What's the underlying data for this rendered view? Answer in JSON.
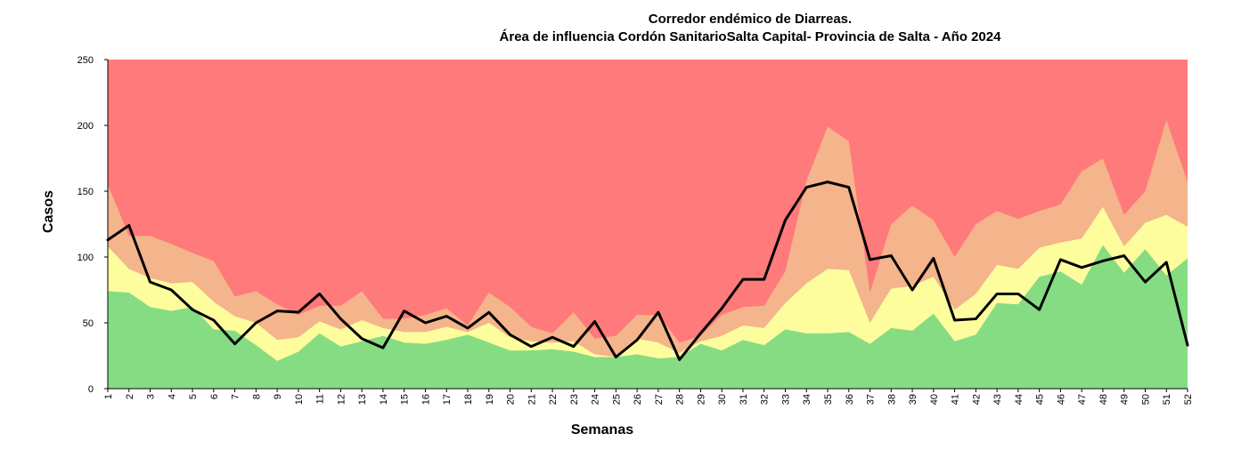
{
  "chart_data": {
    "type": "area",
    "title": "Corredor endémico de Diarreas.",
    "subtitle": "Área de influencia Cordón SanitarioSalta Capital- Provincia de Salta - Año 2024",
    "xlabel": "Semanas",
    "ylabel": "Casos",
    "ylim": [
      0,
      250
    ],
    "yticks": [
      0,
      50,
      100,
      150,
      200,
      250
    ],
    "grid": false,
    "legend": "none",
    "categories": [
      "1",
      "2",
      "3",
      "4",
      "5",
      "6",
      "7",
      "8",
      "9",
      "10",
      "11",
      "12",
      "13",
      "14",
      "15",
      "16",
      "17",
      "18",
      "19",
      "20",
      "21",
      "22",
      "23",
      "24",
      "25",
      "26",
      "27",
      "28",
      "29",
      "30",
      "31",
      "32",
      "33",
      "34",
      "35",
      "36",
      "37",
      "38",
      "39",
      "40",
      "41",
      "42",
      "43",
      "44",
      "45",
      "46",
      "47",
      "48",
      "49",
      "50",
      "51",
      "52"
    ],
    "colors": {
      "epidemia": "#ff7a7a",
      "alerta": "#f4b48c",
      "seguridad": "#fdfd9e",
      "exito": "#86dc82",
      "line": "#000000"
    },
    "bands": {
      "exito": [
        74,
        73,
        62,
        59,
        62,
        45,
        44,
        33,
        21,
        28,
        42,
        32,
        36,
        40,
        35,
        34,
        37,
        41,
        35,
        29,
        29,
        30,
        28,
        24,
        24,
        26,
        23,
        24,
        34,
        29,
        37,
        33,
        45,
        42,
        42,
        43,
        34,
        46,
        44,
        57,
        36,
        41,
        65,
        64,
        85,
        89,
        79,
        109,
        88,
        106,
        86,
        99
      ],
      "seguridad": [
        108,
        91,
        84,
        80,
        81,
        66,
        55,
        50,
        37,
        39,
        51,
        45,
        52,
        46,
        43,
        43,
        47,
        43,
        50,
        39,
        36,
        35,
        36,
        26,
        24,
        38,
        35,
        27,
        36,
        40,
        48,
        46,
        65,
        80,
        91,
        90,
        50,
        76,
        78,
        85,
        60,
        72,
        94,
        91,
        107,
        111,
        114,
        138,
        108,
        126,
        132,
        123
      ],
      "alerta": [
        155,
        116,
        116,
        110,
        103,
        97,
        70,
        74,
        64,
        56,
        63,
        63,
        74,
        53,
        53,
        56,
        61,
        48,
        73,
        62,
        47,
        42,
        58,
        38,
        40,
        56,
        56,
        35,
        40,
        56,
        62,
        63,
        89,
        158,
        199,
        188,
        73,
        125,
        139,
        128,
        100,
        125,
        135,
        129,
        135,
        140,
        165,
        175,
        132,
        150,
        204,
        157
      ]
    },
    "series": [
      {
        "name": "",
        "values": [
          113,
          124,
          81,
          75,
          60,
          52,
          34,
          50,
          59,
          58,
          72,
          53,
          38,
          31,
          59,
          50,
          55,
          46,
          58,
          41,
          32,
          39,
          32,
          51,
          24,
          37,
          58,
          22,
          42,
          61,
          83,
          83,
          128,
          153,
          157,
          153,
          98,
          101,
          75,
          99,
          52,
          53,
          72,
          72,
          60,
          98,
          92,
          97,
          101,
          81,
          96,
          33
        ]
      }
    ]
  }
}
